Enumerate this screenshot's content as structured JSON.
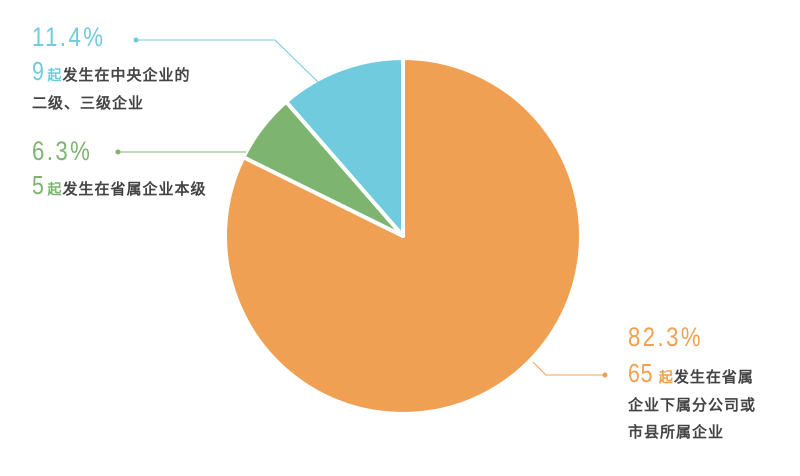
{
  "chart_data": {
    "type": "pie",
    "start_angle": "top, clockwise",
    "slices": [
      {
        "label_pct": "82.3%",
        "value": 82.3,
        "count": "65",
        "unit": "起",
        "text_lines": [
          "发生在省属",
          "企业下属分公司或",
          "市县所属企业"
        ],
        "color": "#f0a053"
      },
      {
        "label_pct": "6.3%",
        "value": 6.3,
        "count": "5",
        "unit": "起",
        "text_lines": [
          "发生在省属企业本级"
        ],
        "color": "#7db470"
      },
      {
        "label_pct": "11.4%",
        "value": 11.4,
        "count": "9",
        "unit": "起",
        "text_lines": [
          "发生在中央企业的",
          "二级、三级企业"
        ],
        "color": "#6fcbdd"
      }
    ],
    "legend": "none",
    "grid": false
  }
}
